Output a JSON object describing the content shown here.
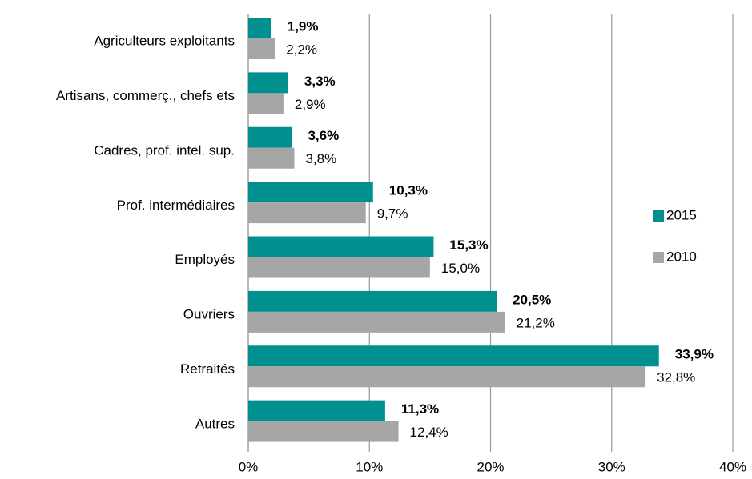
{
  "chart_data": {
    "type": "hbar",
    "categories": [
      "Agriculteurs exploitants",
      "Artisans, commerç., chefs ets",
      "Cadres, prof. intel. sup.",
      "Prof. intermédiaires",
      "Employés",
      "Ouvriers",
      "Retraités",
      "Autres"
    ],
    "series": [
      {
        "name": "2015",
        "color": "#009090",
        "values": [
          1.9,
          3.3,
          3.6,
          10.3,
          15.3,
          20.5,
          33.9,
          11.3
        ],
        "value_labels": [
          "1,9%",
          "3,3%",
          "3,6%",
          "10,3%",
          "15,3%",
          "20,5%",
          "33,9%",
          "11,3%"
        ]
      },
      {
        "name": "2010",
        "color": "#a6a6a6",
        "values": [
          2.2,
          2.9,
          3.8,
          9.7,
          15.0,
          21.2,
          32.8,
          12.4
        ],
        "value_labels": [
          "2,2%",
          "2,9%",
          "3,8%",
          "9,7%",
          "15,0%",
          "21,2%",
          "32,8%",
          "12,4%"
        ]
      }
    ],
    "xlim": [
      0,
      40
    ],
    "xticks": [
      {
        "value": 0,
        "label": "0%"
      },
      {
        "value": 10,
        "label": "10%"
      },
      {
        "value": 20,
        "label": "20%"
      },
      {
        "value": 30,
        "label": "30%"
      },
      {
        "value": 40,
        "label": "40%"
      }
    ],
    "grid": true,
    "legend": "right"
  }
}
